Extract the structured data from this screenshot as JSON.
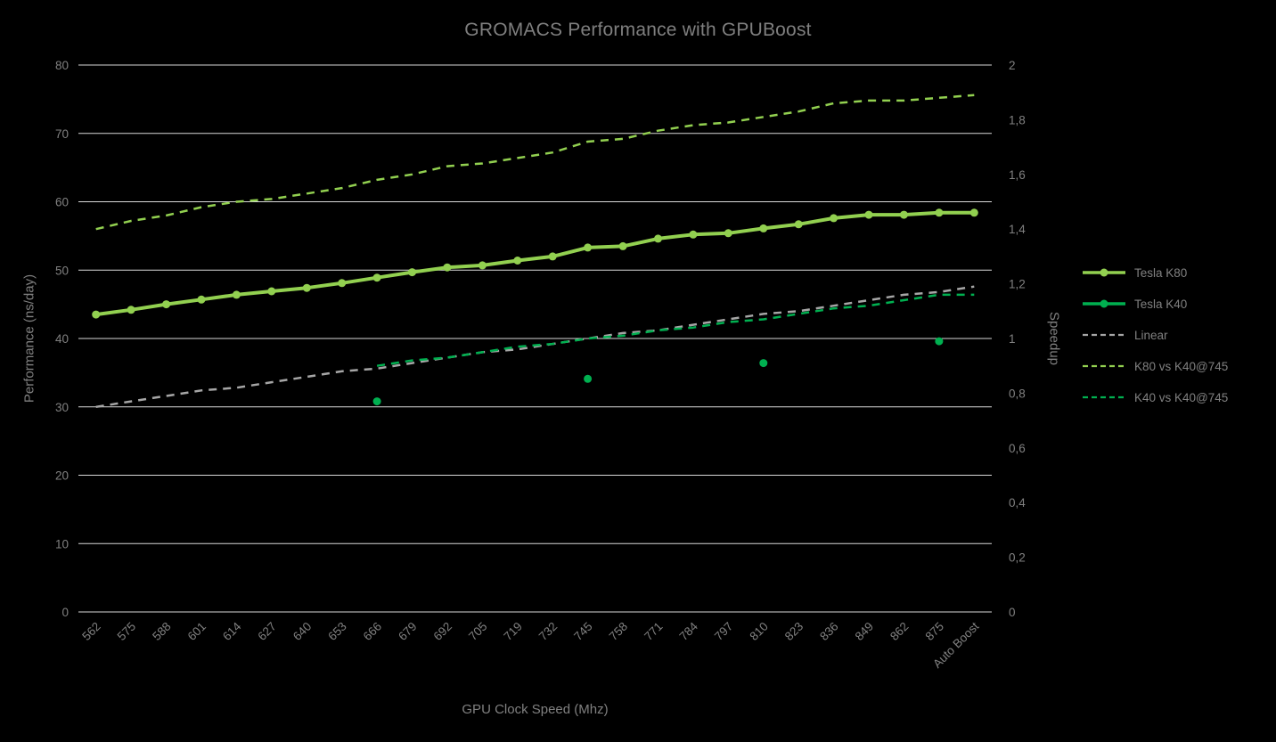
{
  "chart_data": {
    "type": "line",
    "title": "GROMACS Performance with GPUBoost",
    "xlabel": "GPU Clock Speed (Mhz)",
    "ylabel_left": "Performance (ns/day)",
    "ylabel_right": "Speedup",
    "grid": "horizontal",
    "legend_position": "right",
    "colors": {
      "background": "#000000",
      "text": "#808080",
      "title_text": "#7f7f7f",
      "gridline": "#d9d9d9",
      "k80_green": "#92d050",
      "k40_green": "#00b050",
      "linear_gray": "#a6a6a6"
    },
    "y_left": {
      "min": 0,
      "max": 80,
      "labels": [
        "0",
        "10",
        "20",
        "30",
        "40",
        "50",
        "60",
        "70",
        "80"
      ]
    },
    "y_right": {
      "min": 0,
      "max": 2,
      "labels": [
        "0",
        "0,2",
        "0,4",
        "0,6",
        "0,8",
        "1",
        "1,2",
        "1,4",
        "1,6",
        "1,8",
        "2"
      ]
    },
    "categories": [
      "562",
      "575",
      "588",
      "601",
      "614",
      "627",
      "640",
      "653",
      "666",
      "679",
      "692",
      "705",
      "719",
      "732",
      "745",
      "758",
      "771",
      "784",
      "797",
      "810",
      "823",
      "836",
      "849",
      "862",
      "875",
      "Auto Boost"
    ],
    "series": [
      {
        "id": "tesla-k80",
        "name": "Tesla K80",
        "axis": "left",
        "color": "#92d050",
        "style": "solid",
        "marker": true,
        "values": [
          43.5,
          44.2,
          45.0,
          45.7,
          46.4,
          46.9,
          47.4,
          48.1,
          48.9,
          49.7,
          50.4,
          50.7,
          51.4,
          52.0,
          53.3,
          53.5,
          54.6,
          55.2,
          55.4,
          56.1,
          56.7,
          57.6,
          58.1,
          58.1,
          58.4,
          58.4
        ]
      },
      {
        "id": "tesla-k40",
        "name": "Tesla K40",
        "axis": "left",
        "color": "#00b050",
        "style": "solid",
        "marker": true,
        "values": [
          null,
          null,
          null,
          null,
          null,
          null,
          null,
          null,
          30.8,
          null,
          null,
          null,
          null,
          null,
          34.1,
          null,
          null,
          null,
          null,
          36.4,
          null,
          null,
          null,
          null,
          39.6,
          null
        ]
      },
      {
        "id": "linear",
        "name": "Linear",
        "axis": "right",
        "color": "#a6a6a6",
        "style": "dashed",
        "marker": false,
        "values": [
          0.75,
          0.77,
          0.79,
          0.81,
          0.82,
          0.84,
          0.86,
          0.88,
          0.89,
          0.91,
          0.93,
          0.95,
          0.96,
          0.98,
          1.0,
          1.02,
          1.03,
          1.05,
          1.07,
          1.09,
          1.1,
          1.12,
          1.14,
          1.16,
          1.17,
          1.19
        ]
      },
      {
        "id": "k80-vs-k40-745",
        "name": "K80 vs K40@745",
        "axis": "right",
        "color": "#92d050",
        "style": "dashed",
        "marker": false,
        "values": [
          1.4,
          1.43,
          1.45,
          1.48,
          1.5,
          1.51,
          1.53,
          1.55,
          1.58,
          1.6,
          1.63,
          1.64,
          1.66,
          1.68,
          1.72,
          1.73,
          1.76,
          1.78,
          1.79,
          1.81,
          1.83,
          1.86,
          1.87,
          1.87,
          1.88,
          1.89
        ]
      },
      {
        "id": "k40-vs-k40-745",
        "name": "K40 vs K40@745",
        "axis": "right",
        "color": "#00b050",
        "style": "dashed",
        "marker": false,
        "values": [
          null,
          null,
          null,
          null,
          null,
          null,
          null,
          null,
          0.9,
          0.92,
          0.93,
          0.95,
          0.97,
          0.98,
          1.0,
          1.01,
          1.03,
          1.04,
          1.06,
          1.07,
          1.09,
          1.11,
          1.12,
          1.14,
          1.16,
          1.16
        ]
      }
    ]
  }
}
